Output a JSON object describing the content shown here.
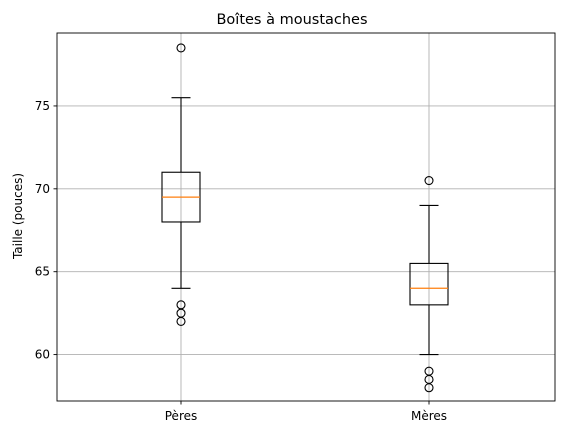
{
  "chart_data": {
    "type": "box",
    "title": "Boîtes à moustaches",
    "xlabel": "",
    "ylabel": "Taille (pouces)",
    "ylim": [
      57.2,
      79.4
    ],
    "yticks": [
      60,
      65,
      70,
      75
    ],
    "grid": true,
    "categories": [
      "Pères",
      "Mères"
    ],
    "boxes": [
      {
        "label": "Pères",
        "q1": 68.0,
        "median": 69.5,
        "q3": 71.0,
        "whisker_low": 64.0,
        "whisker_high": 75.5,
        "outliers": [
          78.5,
          63.0,
          62.5,
          62.0
        ]
      },
      {
        "label": "Mères",
        "q1": 63.0,
        "median": 64.0,
        "q3": 65.5,
        "whisker_low": 60.0,
        "whisker_high": 69.0,
        "outliers": [
          70.5,
          59.0,
          58.5,
          58.0
        ]
      }
    ],
    "colors": {
      "box": "#000000",
      "median": "#ff7f0e",
      "grid": "#b0b0b0"
    }
  }
}
